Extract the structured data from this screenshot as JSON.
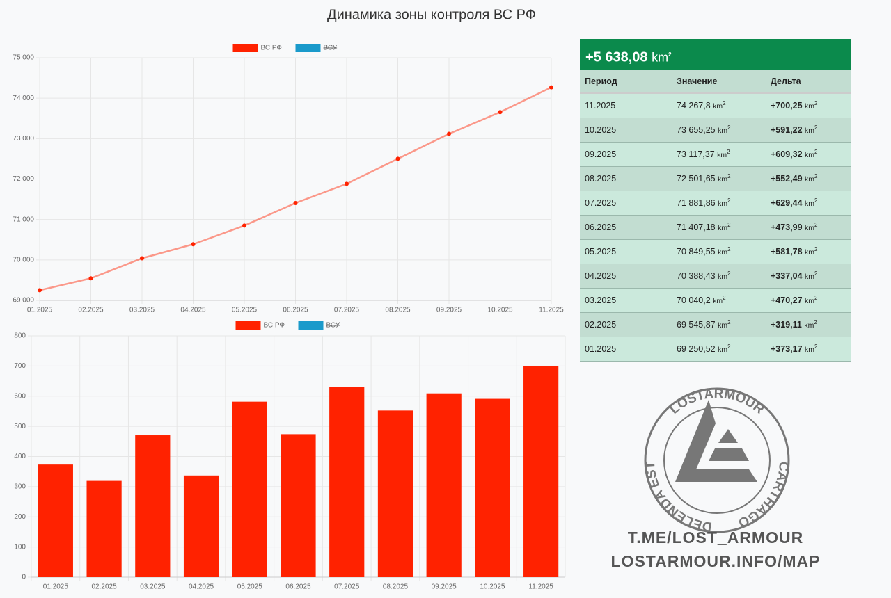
{
  "title": "Динамика зоны контроля ВС РФ",
  "chart_data": [
    {
      "type": "line",
      "categories": [
        "01.2025",
        "02.2025",
        "03.2025",
        "04.2025",
        "05.2025",
        "06.2025",
        "07.2025",
        "08.2025",
        "09.2025",
        "10.2025",
        "11.2025"
      ],
      "series": [
        {
          "name": "ВС РФ",
          "color": "#ff2200",
          "values": [
            69250.52,
            69545.87,
            70040.2,
            70388.43,
            70849.55,
            71407.18,
            71881.86,
            72501.65,
            73117.37,
            73655.25,
            74267.8
          ]
        },
        {
          "name": "ВСУ",
          "color": "#1a9acb",
          "hidden": true,
          "values": [
            null,
            null,
            null,
            null,
            null,
            null,
            null,
            null,
            null,
            null,
            null
          ]
        }
      ],
      "ylim": [
        69000,
        75000
      ],
      "yticks": [
        {
          "value": 69000,
          "label": "69 000"
        },
        {
          "value": 70000,
          "label": "70 000"
        },
        {
          "value": 71000,
          "label": "71 000"
        },
        {
          "value": 72000,
          "label": "72 000"
        },
        {
          "value": 73000,
          "label": "73 000"
        },
        {
          "value": 74000,
          "label": "74 000"
        },
        {
          "value": 75000,
          "label": "75 000"
        }
      ],
      "grid": true
    },
    {
      "type": "bar",
      "categories": [
        "01.2025",
        "02.2025",
        "03.2025",
        "04.2025",
        "05.2025",
        "06.2025",
        "07.2025",
        "08.2025",
        "09.2025",
        "10.2025",
        "11.2025"
      ],
      "series": [
        {
          "name": "ВС РФ",
          "color": "#ff2200",
          "values": [
            373.17,
            319.11,
            470.27,
            337.04,
            581.78,
            473.99,
            629.44,
            552.49,
            609.32,
            591.22,
            700.25
          ]
        },
        {
          "name": "ВСУ",
          "color": "#1a9acb",
          "hidden": true,
          "values": [
            null,
            null,
            null,
            null,
            null,
            null,
            null,
            null,
            null,
            null,
            null
          ]
        }
      ],
      "ylim": [
        0,
        800
      ],
      "yticks": [
        0,
        100,
        200,
        300,
        400,
        500,
        600,
        700,
        800
      ],
      "grid": true
    }
  ],
  "table": {
    "summary": "+5 638,08",
    "unit": {
      "base": "km",
      "exp": "2"
    },
    "columns": [
      "Период",
      "Значение",
      "Дельта"
    ],
    "rows": [
      [
        "11.2025",
        "74 267,8",
        "+700,25"
      ],
      [
        "10.2025",
        "73 655,25",
        "+591,22"
      ],
      [
        "09.2025",
        "73 117,37",
        "+609,32"
      ],
      [
        "08.2025",
        "72 501,65",
        "+552,49"
      ],
      [
        "07.2025",
        "71 881,86",
        "+629,44"
      ],
      [
        "06.2025",
        "71 407,18",
        "+473,99"
      ],
      [
        "05.2025",
        "70 849,55",
        "+581,78"
      ],
      [
        "04.2025",
        "70 388,43",
        "+337,04"
      ],
      [
        "03.2025",
        "70 040,2",
        "+470,27"
      ],
      [
        "02.2025",
        "69 545,87",
        "+319,11"
      ],
      [
        "01.2025",
        "69 250,52",
        "+373,17"
      ]
    ]
  },
  "logo": {
    "top": "LOSTARMOUR",
    "right": "CARTHAGO",
    "bottom": "DELENDA EST"
  },
  "links": [
    "T.ME/LOST_ARMOUR",
    "LOSTARMOUR.INFO/MAP"
  ]
}
